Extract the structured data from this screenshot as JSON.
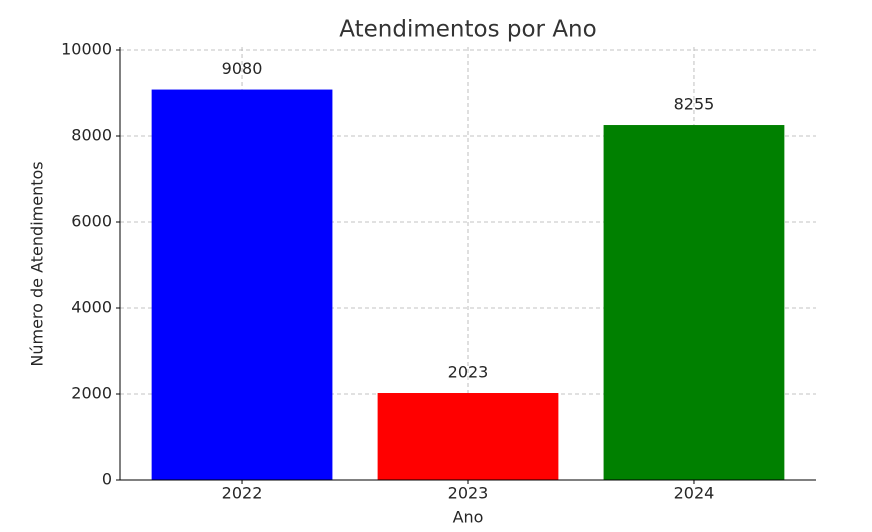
{
  "chart_data": {
    "type": "bar",
    "title": "Atendimentos por Ano",
    "x_label": "Ano",
    "y_label": "Número de Atendimentos",
    "categories": [
      "2022",
      "2023",
      "2024"
    ],
    "values": [
      9080,
      2023,
      8255
    ],
    "colors": [
      "#0000ff",
      "#ff0000",
      "#008000"
    ],
    "ylim": [
      0,
      10000
    ],
    "yticks": [
      0,
      2000,
      4000,
      6000,
      8000,
      10000
    ],
    "grid": true
  }
}
